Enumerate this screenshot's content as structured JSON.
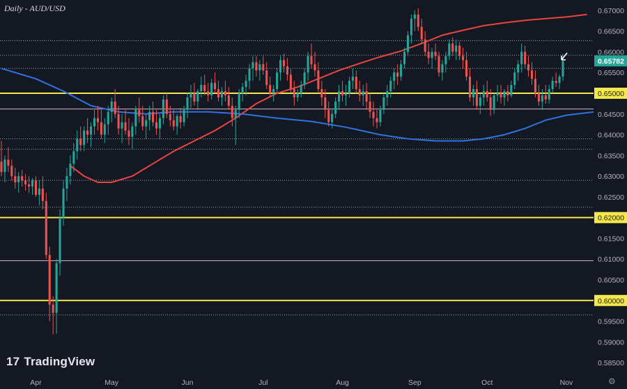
{
  "chart_data": {
    "type": "candlestick",
    "title": "Daily - AUD/USD",
    "brand": "TradingView",
    "price_axis": {
      "ylim": [
        0.5825,
        0.6725
      ],
      "tick_labels": [
        "0.67000",
        "0.66500",
        "0.66000",
        "0.65500",
        "0.65000",
        "0.64500",
        "0.64000",
        "0.63500",
        "0.63000",
        "0.62500",
        "0.62000",
        "0.61500",
        "0.61000",
        "0.60500",
        "0.60000",
        "0.59500",
        "0.59000",
        "0.58500"
      ],
      "tick_values": [
        0.67,
        0.665,
        0.66,
        0.655,
        0.65,
        0.645,
        0.64,
        0.635,
        0.63,
        0.625,
        0.62,
        0.615,
        0.61,
        0.605,
        0.6,
        0.595,
        0.59,
        0.585
      ]
    },
    "time_axis": {
      "months": [
        "Apr",
        "May",
        "Jun",
        "Jul",
        "Aug",
        "Sep",
        "Oct",
        "Nov"
      ],
      "month_start_index": [
        10,
        32,
        54,
        76,
        99,
        120,
        141,
        164
      ]
    },
    "current_price": {
      "label": "0.65782",
      "value": 0.65782,
      "color": "#26a69a"
    },
    "key_levels": [
      {
        "value": 0.65,
        "label": "0.65000",
        "color": "#f5e84c"
      },
      {
        "value": 0.62,
        "label": "0.62000",
        "color": "#f5e84c"
      },
      {
        "value": 0.6,
        "label": "0.60000",
        "color": "#f5e84c"
      }
    ],
    "pink_levels": [
      0.6462,
      0.6096
    ],
    "dotted_levels": [
      0.6627,
      0.6592,
      0.656,
      0.639,
      0.6365,
      0.629,
      0.6225,
      0.5965
    ],
    "moving_averages": [
      {
        "color": "#e8463f",
        "points": [
          [
            20,
            0.6325
          ],
          [
            24,
            0.63
          ],
          [
            28,
            0.6285
          ],
          [
            32,
            0.6285
          ],
          [
            38,
            0.63
          ],
          [
            44,
            0.633
          ],
          [
            50,
            0.636
          ],
          [
            56,
            0.6385
          ],
          [
            62,
            0.641
          ],
          [
            68,
            0.644
          ],
          [
            74,
            0.6475
          ],
          [
            80,
            0.65
          ],
          [
            86,
            0.6515
          ],
          [
            92,
            0.6535
          ],
          [
            98,
            0.6555
          ],
          [
            104,
            0.6572
          ],
          [
            110,
            0.6588
          ],
          [
            116,
            0.6602
          ],
          [
            122,
            0.662
          ],
          [
            128,
            0.664
          ],
          [
            134,
            0.6652
          ],
          [
            140,
            0.6663
          ],
          [
            146,
            0.667
          ],
          [
            152,
            0.6676
          ],
          [
            158,
            0.668
          ],
          [
            164,
            0.6684
          ],
          [
            170,
            0.669
          ]
        ]
      },
      {
        "color": "#2f73e0",
        "points": [
          [
            0,
            0.656
          ],
          [
            10,
            0.6535
          ],
          [
            18,
            0.6505
          ],
          [
            26,
            0.647
          ],
          [
            34,
            0.6455
          ],
          [
            42,
            0.645
          ],
          [
            50,
            0.6455
          ],
          [
            60,
            0.6455
          ],
          [
            70,
            0.645
          ],
          [
            80,
            0.644
          ],
          [
            90,
            0.6432
          ],
          [
            100,
            0.6418
          ],
          [
            110,
            0.64
          ],
          [
            118,
            0.639
          ],
          [
            126,
            0.6385
          ],
          [
            134,
            0.6385
          ],
          [
            140,
            0.639
          ],
          [
            146,
            0.64
          ],
          [
            152,
            0.6415
          ],
          [
            158,
            0.6435
          ],
          [
            164,
            0.6447
          ],
          [
            170,
            0.6453
          ],
          [
            178,
            0.646
          ],
          [
            184,
            0.6466
          ]
        ]
      }
    ],
    "candles": [
      [
        0.6335,
        0.6385,
        0.63,
        0.631
      ],
      [
        0.631,
        0.635,
        0.6285,
        0.634
      ],
      [
        0.634,
        0.637,
        0.631,
        0.6325
      ],
      [
        0.6325,
        0.634,
        0.629,
        0.63
      ],
      [
        0.63,
        0.632,
        0.627,
        0.6285
      ],
      [
        0.6285,
        0.631,
        0.626,
        0.63
      ],
      [
        0.63,
        0.6315,
        0.6275,
        0.629
      ],
      [
        0.629,
        0.6305,
        0.6265,
        0.628
      ],
      [
        0.628,
        0.63,
        0.626,
        0.6275
      ],
      [
        0.6275,
        0.6295,
        0.6255,
        0.629
      ],
      [
        0.629,
        0.63,
        0.625,
        0.6255
      ],
      [
        0.6255,
        0.629,
        0.623,
        0.627
      ],
      [
        0.627,
        0.63,
        0.622,
        0.624
      ],
      [
        0.624,
        0.626,
        0.61,
        0.611
      ],
      [
        0.611,
        0.613,
        0.595,
        0.599
      ],
      [
        0.599,
        0.601,
        0.5918,
        0.597
      ],
      [
        0.597,
        0.61,
        0.592,
        0.609
      ],
      [
        0.609,
        0.622,
        0.606,
        0.62
      ],
      [
        0.62,
        0.629,
        0.618,
        0.627
      ],
      [
        0.627,
        0.632,
        0.624,
        0.63
      ],
      [
        0.63,
        0.635,
        0.628,
        0.633
      ],
      [
        0.633,
        0.638,
        0.631,
        0.636
      ],
      [
        0.636,
        0.641,
        0.634,
        0.639
      ],
      [
        0.639,
        0.642,
        0.636,
        0.6375
      ],
      [
        0.6375,
        0.642,
        0.636,
        0.641
      ],
      [
        0.641,
        0.644,
        0.638,
        0.64
      ],
      [
        0.64,
        0.643,
        0.637,
        0.642
      ],
      [
        0.642,
        0.646,
        0.64,
        0.644
      ],
      [
        0.644,
        0.647,
        0.641,
        0.643
      ],
      [
        0.643,
        0.646,
        0.639,
        0.64
      ],
      [
        0.64,
        0.644,
        0.638,
        0.6425
      ],
      [
        0.6425,
        0.647,
        0.64,
        0.6455
      ],
      [
        0.6455,
        0.649,
        0.643,
        0.648
      ],
      [
        0.648,
        0.651,
        0.644,
        0.645
      ],
      [
        0.645,
        0.647,
        0.64,
        0.6415
      ],
      [
        0.6415,
        0.645,
        0.638,
        0.643
      ],
      [
        0.643,
        0.646,
        0.64,
        0.641
      ],
      [
        0.641,
        0.644,
        0.6375,
        0.6395
      ],
      [
        0.6395,
        0.643,
        0.6365,
        0.642
      ],
      [
        0.642,
        0.647,
        0.64,
        0.646
      ],
      [
        0.646,
        0.649,
        0.643,
        0.6445
      ],
      [
        0.6445,
        0.647,
        0.641,
        0.642
      ],
      [
        0.642,
        0.645,
        0.639,
        0.6435
      ],
      [
        0.6435,
        0.647,
        0.641,
        0.6455
      ],
      [
        0.6455,
        0.648,
        0.642,
        0.643
      ],
      [
        0.643,
        0.646,
        0.64,
        0.6415
      ],
      [
        0.6415,
        0.645,
        0.639,
        0.644
      ],
      [
        0.644,
        0.6495,
        0.6425,
        0.6485
      ],
      [
        0.6485,
        0.65,
        0.644,
        0.645
      ],
      [
        0.645,
        0.647,
        0.642,
        0.6435
      ],
      [
        0.6435,
        0.646,
        0.641,
        0.642
      ],
      [
        0.642,
        0.645,
        0.64,
        0.6445
      ],
      [
        0.6445,
        0.6465,
        0.6415,
        0.643
      ],
      [
        0.643,
        0.647,
        0.642,
        0.646
      ],
      [
        0.646,
        0.65,
        0.644,
        0.649
      ],
      [
        0.649,
        0.652,
        0.6465,
        0.65
      ],
      [
        0.65,
        0.6525,
        0.647,
        0.648
      ],
      [
        0.648,
        0.651,
        0.646,
        0.6505
      ],
      [
        0.6505,
        0.654,
        0.649,
        0.652
      ],
      [
        0.652,
        0.6545,
        0.6495,
        0.6505
      ],
      [
        0.6505,
        0.6525,
        0.648,
        0.6495
      ],
      [
        0.6495,
        0.6535,
        0.6485,
        0.6525
      ],
      [
        0.6525,
        0.655,
        0.65,
        0.651
      ],
      [
        0.651,
        0.653,
        0.648,
        0.649
      ],
      [
        0.649,
        0.6515,
        0.647,
        0.6505
      ],
      [
        0.6505,
        0.653,
        0.648,
        0.6495
      ],
      [
        0.6495,
        0.6515,
        0.646,
        0.647
      ],
      [
        0.647,
        0.649,
        0.642,
        0.644
      ],
      [
        0.644,
        0.647,
        0.6375,
        0.646
      ],
      [
        0.646,
        0.651,
        0.644,
        0.65
      ],
      [
        0.65,
        0.6525,
        0.648,
        0.6515
      ],
      [
        0.6515,
        0.6545,
        0.6495,
        0.653
      ],
      [
        0.653,
        0.657,
        0.651,
        0.656
      ],
      [
        0.656,
        0.659,
        0.653,
        0.6575
      ],
      [
        0.6575,
        0.659,
        0.654,
        0.6555
      ],
      [
        0.6555,
        0.658,
        0.653,
        0.657
      ],
      [
        0.657,
        0.659,
        0.6545,
        0.6555
      ],
      [
        0.6555,
        0.6575,
        0.651,
        0.652
      ],
      [
        0.652,
        0.654,
        0.649,
        0.65
      ],
      [
        0.65,
        0.652,
        0.648,
        0.651
      ],
      [
        0.651,
        0.656,
        0.65,
        0.655
      ],
      [
        0.655,
        0.659,
        0.653,
        0.658
      ],
      [
        0.658,
        0.6595,
        0.655,
        0.6565
      ],
      [
        0.6565,
        0.6585,
        0.653,
        0.6545
      ],
      [
        0.6545,
        0.656,
        0.65,
        0.651
      ],
      [
        0.651,
        0.653,
        0.647,
        0.649
      ],
      [
        0.649,
        0.651,
        0.648,
        0.65
      ],
      [
        0.65,
        0.653,
        0.649,
        0.652
      ],
      [
        0.652,
        0.656,
        0.651,
        0.655
      ],
      [
        0.655,
        0.66,
        0.653,
        0.659
      ],
      [
        0.659,
        0.662,
        0.656,
        0.657
      ],
      [
        0.657,
        0.66,
        0.654,
        0.6555
      ],
      [
        0.6555,
        0.6575,
        0.65,
        0.651
      ],
      [
        0.651,
        0.653,
        0.647,
        0.649
      ],
      [
        0.649,
        0.651,
        0.644,
        0.646
      ],
      [
        0.646,
        0.648,
        0.642,
        0.643
      ],
      [
        0.643,
        0.646,
        0.6415,
        0.645
      ],
      [
        0.645,
        0.649,
        0.644,
        0.648
      ],
      [
        0.648,
        0.652,
        0.646,
        0.6505
      ],
      [
        0.6505,
        0.653,
        0.648,
        0.6495
      ],
      [
        0.6495,
        0.652,
        0.647,
        0.65
      ],
      [
        0.65,
        0.654,
        0.649,
        0.653
      ],
      [
        0.653,
        0.656,
        0.651,
        0.654
      ],
      [
        0.654,
        0.6555,
        0.65,
        0.651
      ],
      [
        0.651,
        0.653,
        0.648,
        0.6495
      ],
      [
        0.6495,
        0.652,
        0.647,
        0.6505
      ],
      [
        0.6505,
        0.6525,
        0.646,
        0.648
      ],
      [
        0.648,
        0.65,
        0.644,
        0.6455
      ],
      [
        0.6455,
        0.648,
        0.642,
        0.644
      ],
      [
        0.644,
        0.646,
        0.6415,
        0.643
      ],
      [
        0.643,
        0.647,
        0.642,
        0.646
      ],
      [
        0.646,
        0.65,
        0.645,
        0.649
      ],
      [
        0.649,
        0.652,
        0.647,
        0.6505
      ],
      [
        0.6505,
        0.654,
        0.649,
        0.653
      ],
      [
        0.653,
        0.656,
        0.651,
        0.655
      ],
      [
        0.655,
        0.657,
        0.652,
        0.654
      ],
      [
        0.654,
        0.658,
        0.653,
        0.657
      ],
      [
        0.657,
        0.661,
        0.656,
        0.66
      ],
      [
        0.66,
        0.665,
        0.659,
        0.664
      ],
      [
        0.664,
        0.669,
        0.662,
        0.668
      ],
      [
        0.668,
        0.67,
        0.665,
        0.669
      ],
      [
        0.669,
        0.6705,
        0.665,
        0.666
      ],
      [
        0.666,
        0.668,
        0.662,
        0.663
      ],
      [
        0.663,
        0.665,
        0.659,
        0.66
      ],
      [
        0.66,
        0.662,
        0.657,
        0.6585
      ],
      [
        0.6585,
        0.661,
        0.656,
        0.66
      ],
      [
        0.66,
        0.662,
        0.658,
        0.659
      ],
      [
        0.659,
        0.66,
        0.654,
        0.655
      ],
      [
        0.655,
        0.658,
        0.653,
        0.657
      ],
      [
        0.657,
        0.66,
        0.655,
        0.659
      ],
      [
        0.659,
        0.663,
        0.658,
        0.662
      ],
      [
        0.662,
        0.6635,
        0.659,
        0.66
      ],
      [
        0.66,
        0.663,
        0.658,
        0.6615
      ],
      [
        0.6615,
        0.6625,
        0.658,
        0.659
      ],
      [
        0.659,
        0.661,
        0.656,
        0.658
      ],
      [
        0.658,
        0.66,
        0.653,
        0.654
      ],
      [
        0.654,
        0.656,
        0.648,
        0.649
      ],
      [
        0.649,
        0.652,
        0.647,
        0.651
      ],
      [
        0.651,
        0.653,
        0.646,
        0.647
      ],
      [
        0.647,
        0.65,
        0.645,
        0.649
      ],
      [
        0.649,
        0.652,
        0.647,
        0.6505
      ],
      [
        0.6505,
        0.653,
        0.648,
        0.649
      ],
      [
        0.649,
        0.651,
        0.6445,
        0.646
      ],
      [
        0.646,
        0.65,
        0.645,
        0.6495
      ],
      [
        0.6495,
        0.652,
        0.648,
        0.65
      ],
      [
        0.65,
        0.652,
        0.6475,
        0.649
      ],
      [
        0.649,
        0.651,
        0.647,
        0.6505
      ],
      [
        0.6505,
        0.652,
        0.648,
        0.6495
      ],
      [
        0.6495,
        0.653,
        0.649,
        0.652
      ],
      [
        0.652,
        0.656,
        0.651,
        0.655
      ],
      [
        0.655,
        0.658,
        0.653,
        0.657
      ],
      [
        0.657,
        0.662,
        0.655,
        0.66
      ],
      [
        0.66,
        0.6615,
        0.656,
        0.657
      ],
      [
        0.657,
        0.659,
        0.654,
        0.6555
      ],
      [
        0.6555,
        0.6575,
        0.652,
        0.6535
      ],
      [
        0.6535,
        0.6555,
        0.649,
        0.65
      ],
      [
        0.65,
        0.652,
        0.647,
        0.648
      ],
      [
        0.648,
        0.651,
        0.646,
        0.6495
      ],
      [
        0.6495,
        0.652,
        0.6475,
        0.6485
      ],
      [
        0.6485,
        0.652,
        0.6475,
        0.651
      ],
      [
        0.651,
        0.654,
        0.65,
        0.653
      ],
      [
        0.653,
        0.655,
        0.6515,
        0.6525
      ],
      [
        0.6525,
        0.6545,
        0.651,
        0.654
      ],
      [
        0.654,
        0.6595,
        0.653,
        0.6578
      ]
    ]
  }
}
